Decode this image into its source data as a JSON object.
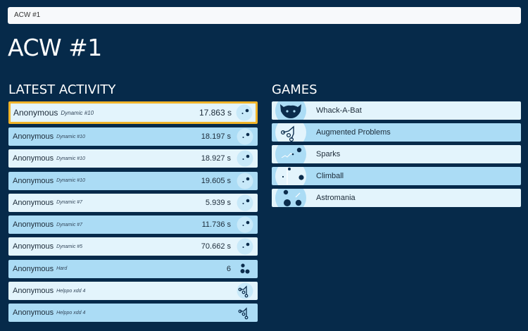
{
  "breadcrumb": "ACW #1",
  "page_title": "ACW #1",
  "activity": {
    "title": "LATEST ACTIVITY",
    "items": [
      {
        "name": "Anonymous",
        "level": "Dynamic #10",
        "value": "17.863 s",
        "icon": "sparks-icon"
      },
      {
        "name": "Anonymous",
        "level": "Dynamic #10",
        "value": "18.197 s",
        "icon": "sparks-icon"
      },
      {
        "name": "Anonymous",
        "level": "Dynamic #10",
        "value": "18.927 s",
        "icon": "sparks-icon"
      },
      {
        "name": "Anonymous",
        "level": "Dynamic #10",
        "value": "19.605 s",
        "icon": "sparks-icon"
      },
      {
        "name": "Anonymous",
        "level": "Dynamic #7",
        "value": "5.939 s",
        "icon": "sparks-icon"
      },
      {
        "name": "Anonymous",
        "level": "Dynamic #7",
        "value": "11.736 s",
        "icon": "sparks-icon"
      },
      {
        "name": "Anonymous",
        "level": "Dynamic #5",
        "value": "70.662 s",
        "icon": "sparks-icon"
      },
      {
        "name": "Anonymous",
        "level": "Hard",
        "value": "6",
        "icon": "astromania-icon"
      },
      {
        "name": "Anonymous",
        "level": "Helppo xdd 4",
        "value": "",
        "icon": "augmented-problems-icon"
      },
      {
        "name": "Anonymous",
        "level": "Helppo xdd 4",
        "value": "",
        "icon": "augmented-problems-icon"
      }
    ]
  },
  "games": {
    "title": "GAMES",
    "items": [
      {
        "name": "Whack-A-Bat",
        "icon": "bat-icon"
      },
      {
        "name": "Augmented Problems",
        "icon": "augmented-problems-icon"
      },
      {
        "name": "Sparks",
        "icon": "sparks-icon"
      },
      {
        "name": "Climball",
        "icon": "climball-icon"
      },
      {
        "name": "Astromania",
        "icon": "astromania-icon"
      }
    ]
  },
  "colors": {
    "background": "#062a4a",
    "row_dark": "#abdcf5",
    "row_light": "#e3f4fc",
    "highlight_border": "#f0b429",
    "icon_dark": "#0b2c4c"
  }
}
